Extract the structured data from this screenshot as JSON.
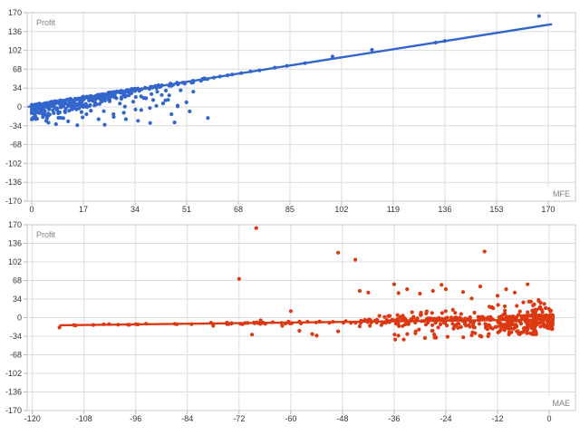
{
  "page": {
    "background": "#ffffff"
  },
  "chart_data": [
    {
      "type": "scatter",
      "name": "profit-vs-mfe",
      "series_label": "Profit",
      "axis_label": "MFE",
      "color": "#3366CC",
      "grid_color": "#dcdcdc",
      "border_color": "#c8c8c8",
      "tick_mark_color": "#bbbbbb",
      "tick_color": "#333333",
      "label_color": "#808080",
      "grid": true,
      "legend": "none",
      "x_domain": [
        -1.5,
        179
      ],
      "y_domain": [
        -170,
        170
      ],
      "x_ticks": [
        0,
        17,
        34,
        51,
        68,
        85,
        102,
        119,
        136,
        153,
        170
      ],
      "y_ticks": [
        170,
        136,
        102,
        68,
        34,
        0,
        -34,
        -68,
        -102,
        -136,
        -170
      ],
      "trendline": {
        "x1": -1,
        "y1": 0.4,
        "x2": 171,
        "y2": 149
      },
      "clusters": [
        {
          "seed": 7,
          "count": 240,
          "x0": 0,
          "x1": 34,
          "xp": 1.5,
          "base": "trend",
          "hi0": 2.5,
          "hi1": 2.5,
          "lo0": -25,
          "lo1": -11,
          "yp": 1.8
        },
        {
          "seed": 11,
          "count": 120,
          "x0": 0,
          "x1": 58,
          "xp": 1.15,
          "base": "trend",
          "hi0": 2,
          "hi1": 2,
          "lo0": -3,
          "lo1": -3,
          "yp": 1
        },
        {
          "seed": 23,
          "count": 38,
          "x0": 2,
          "x1": 54,
          "xp": 1.1,
          "base": "trend",
          "hi0": -6,
          "hi1": -10,
          "lo0": -34,
          "lo1": -44,
          "yp": 0.8,
          "ymin": -33
        }
      ],
      "points": [
        [
          60,
          53
        ],
        [
          62,
          55
        ],
        [
          64.5,
          57
        ],
        [
          66,
          58.5
        ],
        [
          69,
          61
        ],
        [
          72,
          64
        ],
        [
          75,
          66
        ],
        [
          80,
          71
        ],
        [
          84,
          74
        ],
        [
          90,
          79
        ],
        [
          99,
          91
        ],
        [
          112,
          103
        ],
        [
          133,
          116
        ],
        [
          136,
          119
        ],
        [
          167,
          164
        ],
        [
          41,
          2
        ],
        [
          46,
          -13
        ],
        [
          52,
          -8
        ],
        [
          58,
          -20
        ],
        [
          31,
          -22
        ],
        [
          39,
          -29
        ],
        [
          24,
          -32
        ],
        [
          22,
          -22
        ],
        [
          18,
          -13
        ],
        [
          12,
          -26
        ],
        [
          8,
          -31
        ],
        [
          5,
          -21
        ],
        [
          15,
          -33
        ],
        [
          27,
          -18
        ],
        [
          35,
          -25
        ],
        [
          47,
          -28
        ],
        [
          36,
          19
        ],
        [
          44,
          12
        ],
        [
          49,
          30
        ]
      ]
    },
    {
      "type": "scatter",
      "name": "profit-vs-mae",
      "series_label": "Profit",
      "axis_label": "MAE",
      "color": "#DC3912",
      "grid_color": "#dcdcdc",
      "border_color": "#c8c8c8",
      "tick_mark_color": "#bbbbbb",
      "tick_color": "#333333",
      "label_color": "#808080",
      "grid": true,
      "legend": "none",
      "x_domain": [
        -121.2,
        6.1
      ],
      "y_domain": [
        -170,
        170
      ],
      "x_ticks": [
        -120,
        -108,
        -96,
        -84,
        -72,
        -60,
        -48,
        -36,
        -24,
        -12,
        0
      ],
      "y_ticks": [
        170,
        136,
        102,
        68,
        34,
        0,
        -34,
        -68,
        -102,
        -136,
        -170
      ],
      "trendline": {
        "x1": -113.5,
        "y1": -14,
        "x2": 0.5,
        "y2": -3.4
      },
      "clusters": [
        {
          "seed": 31,
          "count": 320,
          "x0": 0.8,
          "x1": -44,
          "xp": 2.1,
          "base": "trend",
          "hi0": 8,
          "hi1": 4,
          "lo0": -18,
          "lo1": -7,
          "yp": 1.6
        },
        {
          "seed": 41,
          "count": 65,
          "x0": 0.5,
          "x1": -40,
          "xp": 1.8,
          "base": "trend",
          "hi0": 38,
          "hi1": 12,
          "lo0": 7,
          "lo1": 4,
          "yp": 0.85
        },
        {
          "seed": 53,
          "count": 75,
          "x0": -2.5,
          "x1": -36,
          "xp": 1.5,
          "base": "trend",
          "hi0": -7,
          "hi1": -9,
          "lo0": -27,
          "lo1": -36,
          "yp": 0.8
        },
        {
          "seed": 61,
          "count": 42,
          "x0": -40,
          "x1": -76,
          "xp": 1,
          "base": "trend",
          "hi0": 2.5,
          "hi1": 2,
          "lo0": -3,
          "lo1": -2,
          "yp": 1
        },
        {
          "seed": 71,
          "count": 14,
          "x0": -76,
          "x1": -112,
          "xp": 1,
          "base": "trend",
          "hi0": 1.5,
          "hi1": 1.5,
          "lo0": -1.5,
          "lo1": -1.5,
          "yp": 1
        }
      ],
      "points": [
        [
          -113.7,
          -18
        ],
        [
          -96,
          -12
        ],
        [
          -78,
          -15
        ],
        [
          -69,
          -31
        ],
        [
          -67,
          -5
        ],
        [
          -62,
          -15
        ],
        [
          -55,
          -30
        ],
        [
          -54,
          -33
        ],
        [
          -49,
          -25
        ],
        [
          -44,
          -16
        ],
        [
          -31,
          -25
        ],
        [
          -58,
          -24
        ],
        [
          -72,
          71
        ],
        [
          -68,
          164
        ],
        [
          -49,
          119
        ],
        [
          -45,
          106
        ],
        [
          -36,
          61
        ],
        [
          -25,
          60
        ],
        [
          -15,
          121
        ],
        [
          -5,
          61
        ],
        [
          -44,
          49
        ],
        [
          -42,
          46
        ],
        [
          -35,
          45
        ],
        [
          -27,
          49
        ],
        [
          -24,
          52
        ],
        [
          -8,
          46
        ],
        [
          -6,
          28
        ],
        [
          -12,
          40
        ],
        [
          -18,
          35
        ],
        [
          -20,
          47
        ],
        [
          -10,
          52
        ],
        [
          -16,
          57
        ],
        [
          -30,
          44
        ],
        [
          -33,
          52
        ],
        [
          -60,
          12
        ]
      ]
    }
  ]
}
